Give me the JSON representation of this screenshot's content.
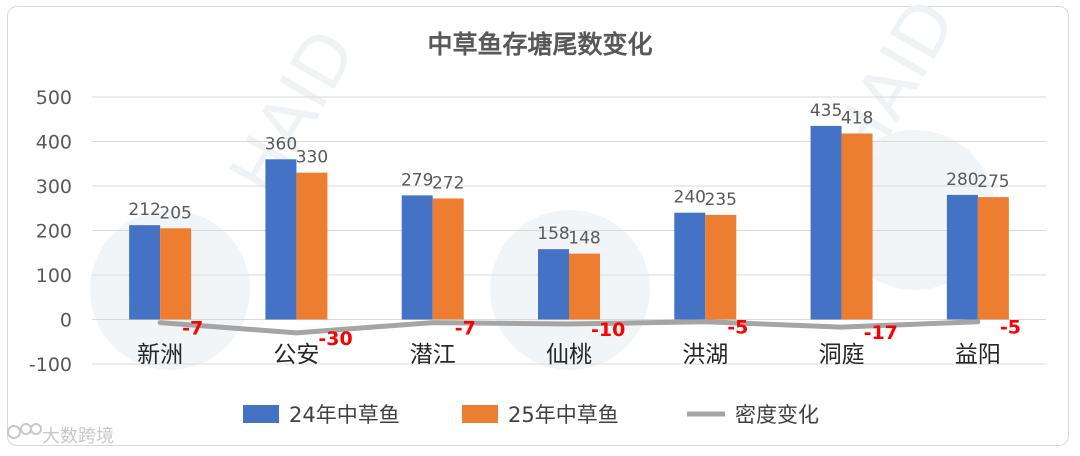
{
  "chart_data": {
    "type": "bar",
    "title": "中草鱼存塘尾数变化",
    "categories": [
      "新洲",
      "公安",
      "潜江",
      "仙桃",
      "洪湖",
      "洞庭",
      "益阳"
    ],
    "series": [
      {
        "name": "24年中草鱼",
        "type": "bar",
        "color": "#4472c4",
        "values": [
          212,
          360,
          279,
          158,
          240,
          435,
          280
        ]
      },
      {
        "name": "25年中草鱼",
        "type": "bar",
        "color": "#ed7d31",
        "values": [
          205,
          330,
          272,
          148,
          235,
          418,
          275
        ]
      },
      {
        "name": "密度变化",
        "type": "line",
        "color": "#a5a5a5",
        "values": [
          -7,
          -30,
          -7,
          -10,
          -5,
          -17,
          -5
        ]
      }
    ],
    "ylim": [
      -100,
      500
    ],
    "yticks": [
      -100,
      0,
      100,
      200,
      300,
      400,
      500
    ],
    "ytick_labels": [
      "-100",
      "0",
      "100",
      "200",
      "300",
      "400",
      "500"
    ],
    "grid": true,
    "legend_position": "bottom",
    "change_label_color": "#ff0000"
  },
  "watermark": {
    "bg_text": "HAID",
    "brand_text": "大数跨境"
  }
}
